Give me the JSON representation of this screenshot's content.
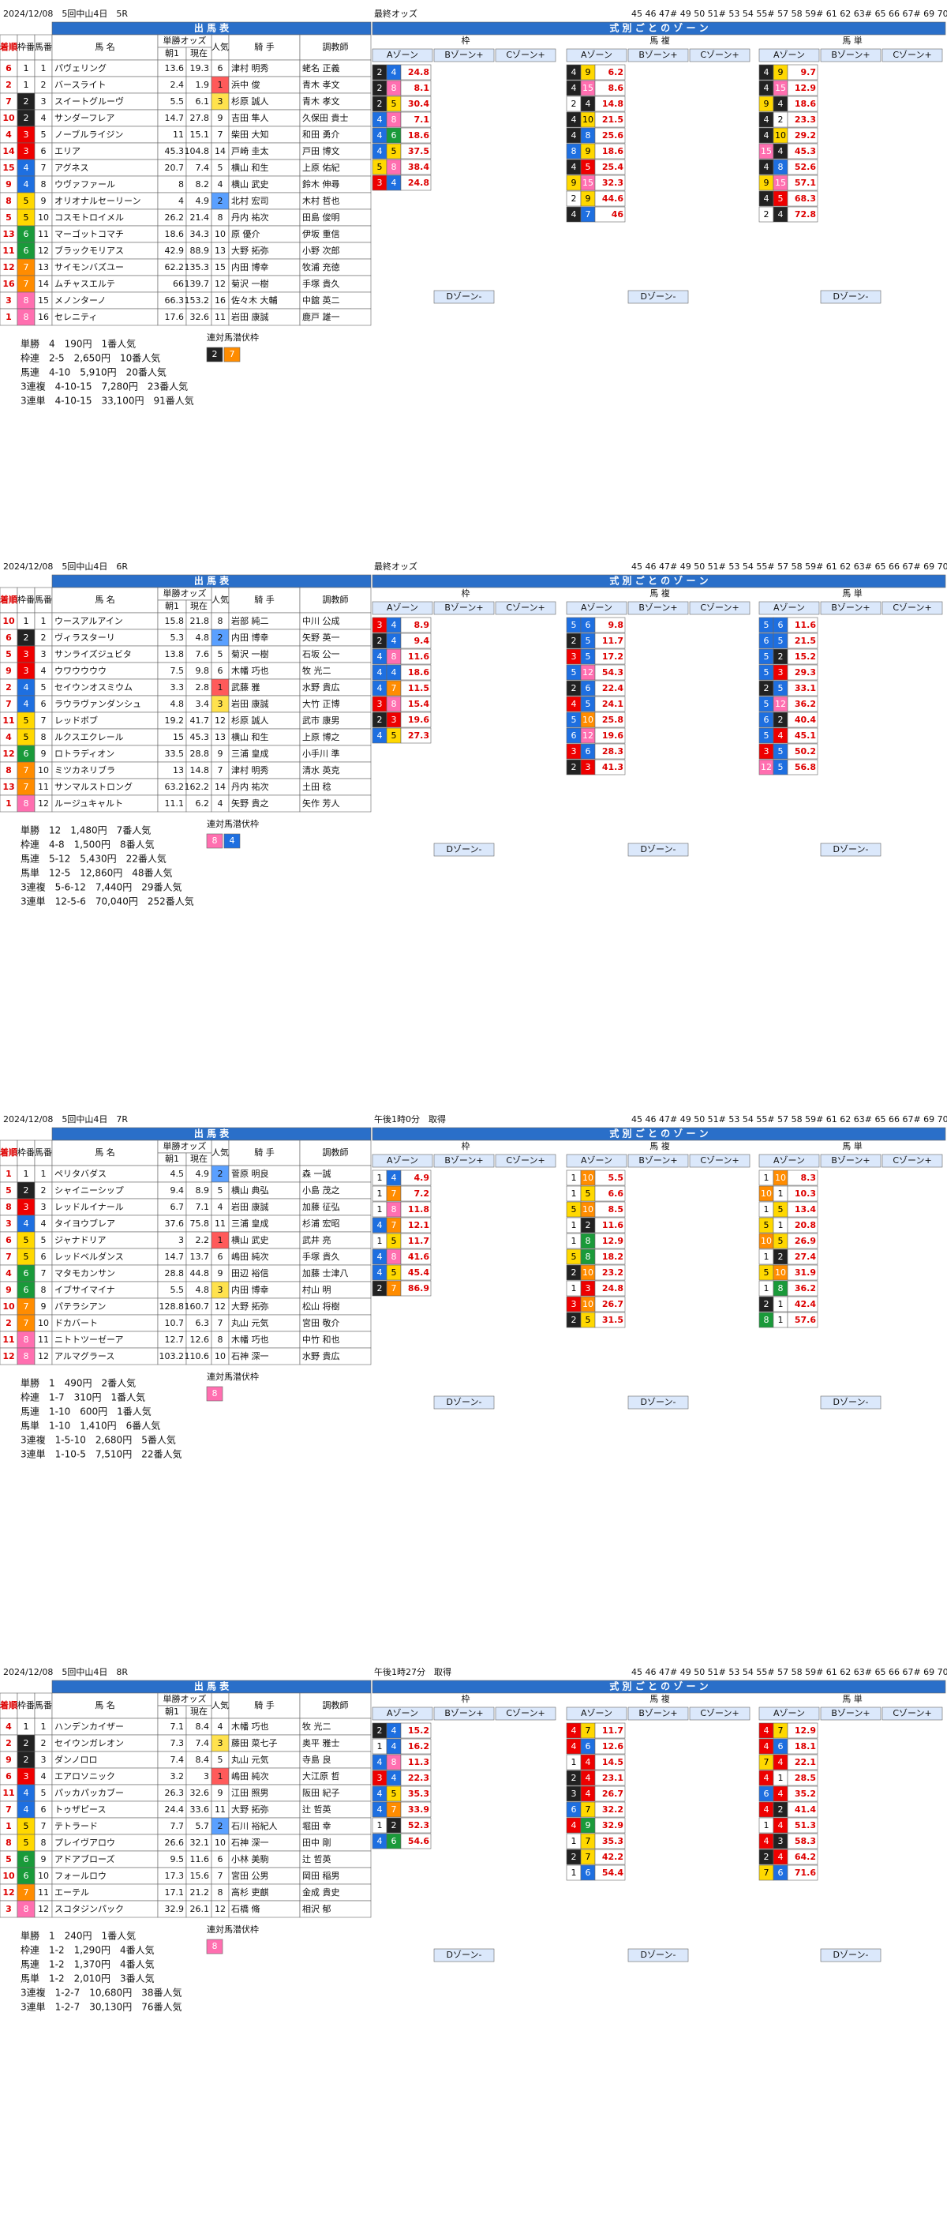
{
  "labels": {
    "table_title": "出 馬 表",
    "rank": "着順",
    "waku": "枠番",
    "num": "馬番",
    "name": "馬 名",
    "odds": "単勝オッズ",
    "am": "朝1",
    "now": "現在",
    "pop": "人気",
    "jockey": "騎 手",
    "trainer": "調教師",
    "zone_title": "式 別 ご と の ゾ ー ン",
    "g_waku": "枠",
    "g_umaren": "馬 複",
    "g_umatan": "馬 単",
    "zone_a": "Aゾーン",
    "zone_b": "Bゾーン+",
    "zone_c": "Cゾーン+",
    "zone_d": "Dゾーン-",
    "hidden": "連対馬潜伏枠",
    "cols": "45 46 47# 49 50 51# 53 54 55# 57 58 59# 61 62 63# 65 66 67# 69 70 71"
  },
  "races": [
    {
      "header": "2024/12/08　5回中山4日　5R",
      "odds_label": "最終オッズ",
      "horses": [
        [
          6,
          1,
          1,
          "パヴェリング",
          13.6,
          19.3,
          6,
          "津村 明秀",
          "蛯名 正義"
        ],
        [
          2,
          1,
          2,
          "バースライト",
          2.4,
          1.9,
          1,
          "浜中 俊",
          "青木 孝文"
        ],
        [
          7,
          2,
          3,
          "スイートグルーヴ",
          5.5,
          6.1,
          3,
          "杉原 誠人",
          "青木 孝文"
        ],
        [
          10,
          2,
          4,
          "サンダーフレア",
          14.7,
          27.8,
          9,
          "吉田 隼人",
          "久保田 貴士"
        ],
        [
          4,
          3,
          5,
          "ノーブルライジン",
          11,
          15.1,
          7,
          "柴田 大知",
          "和田 勇介"
        ],
        [
          14,
          3,
          6,
          "エリア",
          45.3,
          104.8,
          14,
          "戸崎 圭太",
          "戸田 博文"
        ],
        [
          15,
          4,
          7,
          "アグネス",
          20.7,
          7.4,
          5,
          "横山 和生",
          "上原 佑紀"
        ],
        [
          9,
          4,
          8,
          "ウヴァファール",
          8,
          8.2,
          4,
          "横山 武史",
          "鈴木 伸尋"
        ],
        [
          8,
          5,
          9,
          "オリオナルセーリーン",
          4,
          4.9,
          2,
          "北村 宏司",
          "木村 哲也"
        ],
        [
          5,
          5,
          10,
          "コスモトロイメル",
          26.2,
          21.4,
          8,
          "丹内 祐次",
          "田島 俊明"
        ],
        [
          13,
          6,
          11,
          "マーゴットコマチ",
          18.6,
          34.3,
          10,
          "原 優介",
          "伊坂 重信"
        ],
        [
          11,
          6,
          12,
          "ブラックモリアス",
          42.9,
          88.9,
          13,
          "大野 拓弥",
          "小野 次郎"
        ],
        [
          12,
          7,
          13,
          "サイモンバズユー",
          62.2,
          135.3,
          15,
          "内田 博幸",
          "牧浦 充徳"
        ],
        [
          16,
          7,
          14,
          "ムチャスエルテ",
          66,
          139.7,
          12,
          "菊沢 一樹",
          "手塚 貴久"
        ],
        [
          3,
          8,
          15,
          "メノンターノ",
          66.3,
          153.2,
          16,
          "佐々木 大輔",
          "中舘 英二"
        ],
        [
          1,
          8,
          16,
          "セレニティ",
          17.6,
          32.6,
          11,
          "岩田 康誠",
          "鹿戸 雄一"
        ]
      ],
      "results": [
        "単勝　4　190円　1番人気",
        "枠連　2-5　2,650円　10番人気",
        "馬連　4-10　5,910円　20番人気",
        "3連複　4-10-15　7,280円　23番人気",
        "3連単　4-10-15　33,100円　91番人気"
      ],
      "hidden_waku": [
        2,
        7
      ],
      "waku_a": [
        [
          2,
          4,
          24.8
        ],
        [
          2,
          8,
          8.1
        ],
        [
          2,
          5,
          30.4
        ],
        [
          4,
          8,
          7.1
        ],
        [
          4,
          6,
          18.6
        ],
        [
          4,
          5,
          37.5
        ],
        [
          5,
          8,
          38.4
        ],
        [
          3,
          4,
          24.8
        ]
      ],
      "umaren_a": [
        [
          4,
          9,
          6.2
        ],
        [
          4,
          15,
          8.6
        ],
        [
          2,
          4,
          14.8
        ],
        [
          4,
          10,
          21.5
        ],
        [
          4,
          8,
          25.6
        ],
        [
          8,
          9,
          18.6
        ],
        [
          4,
          5,
          25.4
        ],
        [
          9,
          15,
          32.3
        ],
        [
          2,
          9,
          44.6
        ],
        [
          4,
          7,
          46
        ]
      ],
      "umatan_a": [
        [
          4,
          9,
          9.7
        ],
        [
          4,
          15,
          12.9
        ],
        [
          9,
          4,
          18.6
        ],
        [
          4,
          2,
          23.3
        ],
        [
          4,
          10,
          29.2
        ],
        [
          15,
          4,
          45.3
        ],
        [
          4,
          8,
          52.6
        ],
        [
          9,
          15,
          57.1
        ],
        [
          4,
          5,
          68.3
        ],
        [
          2,
          4,
          72.8
        ]
      ]
    },
    {
      "header": "2024/12/08　5回中山4日　6R",
      "odds_label": "最終オッズ",
      "horses": [
        [
          10,
          1,
          1,
          "ウースアルアイン",
          15.8,
          21.8,
          8,
          "岩部 純二",
          "中川 公成"
        ],
        [
          6,
          2,
          2,
          "ヴィラスターリ",
          5.3,
          4.8,
          2,
          "内田 博幸",
          "矢野 英一"
        ],
        [
          5,
          3,
          3,
          "サンライズジュビタ",
          13.8,
          7.6,
          5,
          "菊沢 一樹",
          "石坂 公一"
        ],
        [
          9,
          3,
          4,
          "ウワウウウウ",
          7.5,
          9.8,
          6,
          "木幡 巧也",
          "牧 光二"
        ],
        [
          2,
          4,
          5,
          "セイウンオスミウム",
          3.3,
          2.8,
          1,
          "武藤 雅",
          "水野 貴広"
        ],
        [
          7,
          4,
          6,
          "ラウラヴァンダンシュ",
          4.8,
          3.4,
          3,
          "岩田 康誠",
          "大竹 正博"
        ],
        [
          11,
          5,
          7,
          "レッドボブ",
          19.2,
          41.7,
          12,
          "杉原 誠人",
          "武市 康男"
        ],
        [
          4,
          5,
          8,
          "ルクスエクレール",
          15,
          45.3,
          13,
          "横山 和生",
          "上原 博之"
        ],
        [
          12,
          6,
          9,
          "ロトラディオン",
          33.5,
          28.8,
          9,
          "三浦 皇成",
          "小手川 準"
        ],
        [
          8,
          7,
          10,
          "ミツカネリブラ",
          13,
          14.8,
          7,
          "津村 明秀",
          "清水 英克"
        ],
        [
          13,
          7,
          11,
          "サンマルストロング",
          63.2,
          162.2,
          14,
          "丹内 祐次",
          "土田 稔"
        ],
        [
          1,
          8,
          12,
          "ルージュキャルト",
          11.1,
          6.2,
          4,
          "矢野 貴之",
          "矢作 芳人"
        ]
      ],
      "results": [
        "単勝　12　1,480円　7番人気",
        "枠連　4-8　1,500円　8番人気",
        "馬連　5-12　5,430円　22番人気",
        "馬単　12-5　12,860円　48番人気",
        "3連複　5-6-12　7,440円　29番人気",
        "3連単　12-5-6　70,040円　252番人気"
      ],
      "hidden_waku": [
        8,
        4
      ],
      "waku_a": [
        [
          3,
          4,
          8.9
        ],
        [
          2,
          4,
          9.4
        ],
        [
          4,
          8,
          11.6
        ],
        [
          4,
          4,
          18.6
        ],
        [
          4,
          7,
          11.5
        ],
        [
          3,
          8,
          15.4
        ],
        [
          2,
          3,
          19.6
        ],
        [
          4,
          5,
          27.3
        ]
      ],
      "umaren_a": [
        [
          5,
          6,
          9.8
        ],
        [
          2,
          5,
          11.7
        ],
        [
          3,
          5,
          17.2
        ],
        [
          5,
          12,
          54.3
        ],
        [
          2,
          6,
          22.4
        ],
        [
          4,
          5,
          24.1
        ],
        [
          5,
          10,
          25.8
        ],
        [
          6,
          12,
          19.6
        ],
        [
          3,
          6,
          28.3
        ],
        [
          2,
          3,
          41.3
        ]
      ],
      "umatan_a": [
        [
          5,
          6,
          11.6
        ],
        [
          6,
          5,
          21.5
        ],
        [
          5,
          2,
          15.2
        ],
        [
          5,
          3,
          29.3
        ],
        [
          2,
          5,
          33.1
        ],
        [
          5,
          12,
          36.2
        ],
        [
          6,
          2,
          40.4
        ],
        [
          5,
          4,
          45.1
        ],
        [
          3,
          5,
          50.2
        ],
        [
          12,
          5,
          56.8
        ]
      ]
    },
    {
      "header": "2024/12/08　5回中山4日　7R",
      "odds_label": "午後1時0分　取得",
      "horses": [
        [
          1,
          1,
          1,
          "ペリタバダス",
          4.5,
          4.9,
          2,
          "菅原 明良",
          "森 一誠"
        ],
        [
          5,
          2,
          2,
          "シャイニーシップ",
          9.4,
          8.9,
          5,
          "横山 典弘",
          "小島 茂之"
        ],
        [
          8,
          3,
          3,
          "レッドルイナール",
          6.7,
          7.1,
          4,
          "岩田 康誠",
          "加藤 征弘"
        ],
        [
          3,
          4,
          4,
          "タイヨウブレア",
          37.6,
          75.8,
          11,
          "三浦 皇成",
          "杉浦 宏昭"
        ],
        [
          6,
          5,
          5,
          "ジャナドリア",
          3,
          2.2,
          1,
          "横山 武史",
          "武井 亮"
        ],
        [
          7,
          5,
          6,
          "レッドベルダンス",
          14.7,
          13.7,
          6,
          "嶋田 純次",
          "手塚 貴久"
        ],
        [
          4,
          6,
          7,
          "マタモカンサン",
          28.8,
          44.8,
          9,
          "田辺 裕信",
          "加藤 士津八"
        ],
        [
          9,
          6,
          8,
          "イブサイマイナ",
          5.5,
          4.8,
          3,
          "内田 博幸",
          "村山 明"
        ],
        [
          10,
          7,
          9,
          "パテラシアン",
          128.8,
          160.7,
          12,
          "大野 拓弥",
          "松山 将樹"
        ],
        [
          2,
          7,
          10,
          "ドカバート",
          10.7,
          6.3,
          7,
          "丸山 元気",
          "宮田 敬介"
        ],
        [
          11,
          8,
          11,
          "ニトトツーゼーア",
          12.7,
          12.6,
          8,
          "木幡 巧也",
          "中竹 和也"
        ],
        [
          12,
          8,
          12,
          "アルマグラース",
          103.2,
          110.6,
          10,
          "石神 深一",
          "水野 貴広"
        ]
      ],
      "results": [
        "単勝　1　490円　2番人気",
        "枠連　1-7　310円　1番人気",
        "馬連　1-10　600円　1番人気",
        "馬単　1-10　1,410円　6番人気",
        "3連複　1-5-10　2,680円　5番人気",
        "3連単　1-10-5　7,510円　22番人気"
      ],
      "hidden_waku": [
        8
      ],
      "waku_a": [
        [
          1,
          4,
          4.9
        ],
        [
          1,
          7,
          7.2
        ],
        [
          1,
          8,
          11.8
        ],
        [
          4,
          7,
          12.1
        ],
        [
          1,
          5,
          11.7
        ],
        [
          4,
          8,
          41.6
        ],
        [
          4,
          5,
          45.4
        ],
        [
          2,
          7,
          86.9
        ]
      ],
      "umaren_a": [
        [
          1,
          10,
          5.5
        ],
        [
          1,
          5,
          6.6
        ],
        [
          5,
          10,
          8.5
        ],
        [
          1,
          2,
          11.6
        ],
        [
          1,
          8,
          12.9
        ],
        [
          5,
          8,
          18.2
        ],
        [
          2,
          10,
          23.2
        ],
        [
          1,
          3,
          24.8
        ],
        [
          3,
          10,
          26.7
        ],
        [
          2,
          5,
          31.5
        ]
      ],
      "umatan_a": [
        [
          1,
          10,
          8.3
        ],
        [
          10,
          1,
          10.3
        ],
        [
          1,
          5,
          13.4
        ],
        [
          5,
          1,
          20.8
        ],
        [
          10,
          5,
          26.9
        ],
        [
          1,
          2,
          27.4
        ],
        [
          5,
          10,
          31.9
        ],
        [
          1,
          8,
          36.2
        ],
        [
          2,
          1,
          42.4
        ],
        [
          8,
          1,
          57.6
        ]
      ]
    },
    {
      "header": "2024/12/08　5回中山4日　8R",
      "odds_label": "午後1時27分　取得",
      "horses": [
        [
          4,
          1,
          1,
          "ハンデンカイザー",
          7.1,
          8.4,
          4,
          "木幡 巧也",
          "牧 光二"
        ],
        [
          2,
          2,
          2,
          "セイウンガレオン",
          7.3,
          7.4,
          3,
          "藤田 菜七子",
          "奥平 雅士"
        ],
        [
          9,
          2,
          3,
          "ダンノロロ",
          7.4,
          8.4,
          5,
          "丸山 元気",
          "寺島 良"
        ],
        [
          6,
          3,
          4,
          "エアロソニック",
          3.2,
          3,
          1,
          "嶋田 純次",
          "大江原 哲"
        ],
        [
          11,
          4,
          5,
          "パッカパッカブー",
          26.3,
          32.6,
          9,
          "江田 照男",
          "阪田 紀子"
        ],
        [
          7,
          4,
          6,
          "トゥザピース",
          24.4,
          33.6,
          11,
          "大野 拓弥",
          "辻 哲英"
        ],
        [
          1,
          5,
          7,
          "テトラード",
          7.7,
          5.7,
          2,
          "石川 裕紀人",
          "堀田 幸"
        ],
        [
          8,
          5,
          8,
          "プレイヴアロウ",
          26.6,
          32.1,
          10,
          "石神 深一",
          "田中 剛"
        ],
        [
          5,
          6,
          9,
          "アドアブローズ",
          9.5,
          11.6,
          6,
          "小林 美駒",
          "辻 哲英"
        ],
        [
          10,
          6,
          10,
          "フォールロウ",
          17.3,
          15.6,
          7,
          "宮田 公男",
          "岡田 稲男"
        ],
        [
          12,
          7,
          11,
          "エーテル",
          17.1,
          21.2,
          8,
          "高杉 吏麒",
          "金成 貴史"
        ],
        [
          3,
          8,
          12,
          "スコタジンパック",
          32.9,
          26.1,
          12,
          "石橋 脩",
          "相沢 郁"
        ]
      ],
      "results": [
        "単勝　1　240円　1番人気",
        "枠連　1-2　1,290円　4番人気",
        "馬連　1-2　1,370円　4番人気",
        "馬単　1-2　2,010円　3番人気",
        "3連複　1-2-7　10,680円　38番人気",
        "3連単　1-2-7　30,130円　76番人気"
      ],
      "hidden_waku": [
        8
      ],
      "waku_a": [
        [
          2,
          4,
          15.2
        ],
        [
          1,
          4,
          16.2
        ],
        [
          4,
          8,
          11.3
        ],
        [
          3,
          4,
          22.3
        ],
        [
          4,
          5,
          35.3
        ],
        [
          4,
          7,
          33.9
        ],
        [
          1,
          2,
          52.3
        ],
        [
          4,
          6,
          54.6
        ]
      ],
      "umaren_a": [
        [
          4,
          7,
          11.7
        ],
        [
          4,
          6,
          12.6
        ],
        [
          1,
          4,
          14.5
        ],
        [
          2,
          4,
          23.1
        ],
        [
          3,
          4,
          26.7
        ],
        [
          6,
          7,
          32.2
        ],
        [
          4,
          9,
          32.9
        ],
        [
          1,
          7,
          35.3
        ],
        [
          2,
          7,
          42.2
        ],
        [
          1,
          6,
          54.4
        ]
      ],
      "umatan_a": [
        [
          4,
          7,
          12.9
        ],
        [
          4,
          6,
          18.1
        ],
        [
          7,
          4,
          22.1
        ],
        [
          4,
          1,
          28.5
        ],
        [
          6,
          4,
          35.2
        ],
        [
          4,
          2,
          41.4
        ],
        [
          1,
          4,
          51.3
        ],
        [
          4,
          3,
          58.3
        ],
        [
          2,
          4,
          64.2
        ],
        [
          7,
          6,
          71.6
        ]
      ]
    }
  ]
}
